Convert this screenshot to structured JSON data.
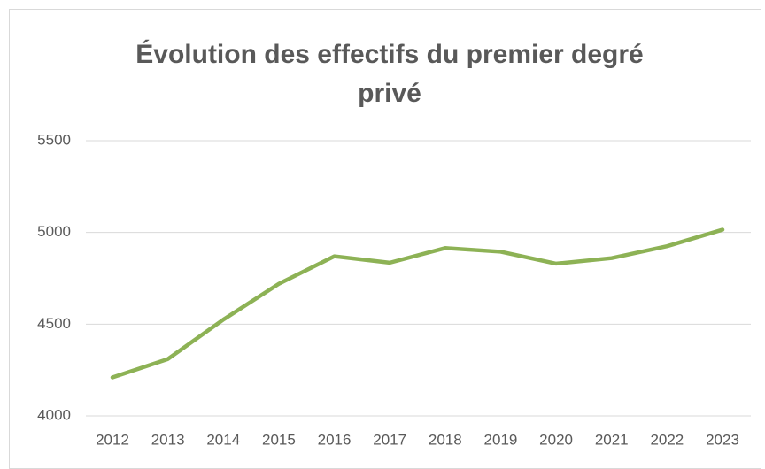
{
  "chart_data": {
    "type": "line",
    "title": "Évolution des effectifs du premier degré privé",
    "categories": [
      "2012",
      "2013",
      "2014",
      "2015",
      "2016",
      "2017",
      "2018",
      "2019",
      "2020",
      "2021",
      "2022",
      "2023"
    ],
    "values": [
      4210,
      4310,
      4525,
      4720,
      4870,
      4835,
      4915,
      4895,
      4830,
      4860,
      4925,
      5015
    ],
    "color": "#8db255",
    "ylim": [
      4000,
      5500
    ],
    "yticks": [
      4000,
      4500,
      5000,
      5500
    ],
    "grid": true
  }
}
